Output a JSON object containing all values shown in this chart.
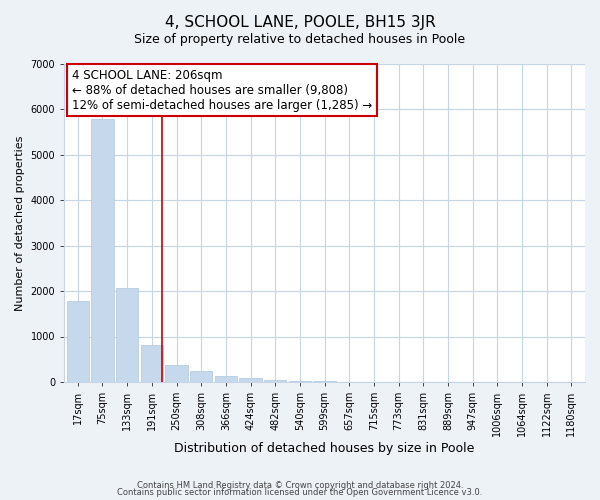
{
  "title": "4, SCHOOL LANE, POOLE, BH15 3JR",
  "subtitle": "Size of property relative to detached houses in Poole",
  "xlabel": "Distribution of detached houses by size in Poole",
  "ylabel": "Number of detached properties",
  "bar_labels": [
    "17sqm",
    "75sqm",
    "133sqm",
    "191sqm",
    "250sqm",
    "308sqm",
    "366sqm",
    "424sqm",
    "482sqm",
    "540sqm",
    "599sqm",
    "657sqm",
    "715sqm",
    "773sqm",
    "831sqm",
    "889sqm",
    "947sqm",
    "1006sqm",
    "1064sqm",
    "1122sqm",
    "1180sqm"
  ],
  "bar_values": [
    1780,
    5780,
    2060,
    820,
    370,
    230,
    120,
    80,
    40,
    20,
    10,
    5,
    5,
    0,
    0,
    0,
    0,
    0,
    0,
    0,
    0
  ],
  "bar_color": "#c5d8ec",
  "bar_edge_color": "#b0c8e0",
  "property_line_x": 3.42,
  "property_line_color": "#cc0000",
  "ylim": [
    0,
    7000
  ],
  "yticks": [
    0,
    1000,
    2000,
    3000,
    4000,
    5000,
    6000,
    7000
  ],
  "annotation_title": "4 SCHOOL LANE: 206sqm",
  "annotation_line1": "← 88% of detached houses are smaller (9,808)",
  "annotation_line2": "12% of semi-detached houses are larger (1,285) →",
  "annotation_box_color": "#cc0000",
  "footer1": "Contains HM Land Registry data © Crown copyright and database right 2024.",
  "footer2": "Contains public sector information licensed under the Open Government Licence v3.0.",
  "bg_color": "#edf2f7",
  "plot_bg_color": "#ffffff",
  "grid_color": "#c5d5e5",
  "title_fontsize": 11,
  "subtitle_fontsize": 9,
  "xlabel_fontsize": 9,
  "ylabel_fontsize": 8,
  "tick_fontsize": 7,
  "annotation_fontsize": 8.5,
  "footer_fontsize": 6
}
